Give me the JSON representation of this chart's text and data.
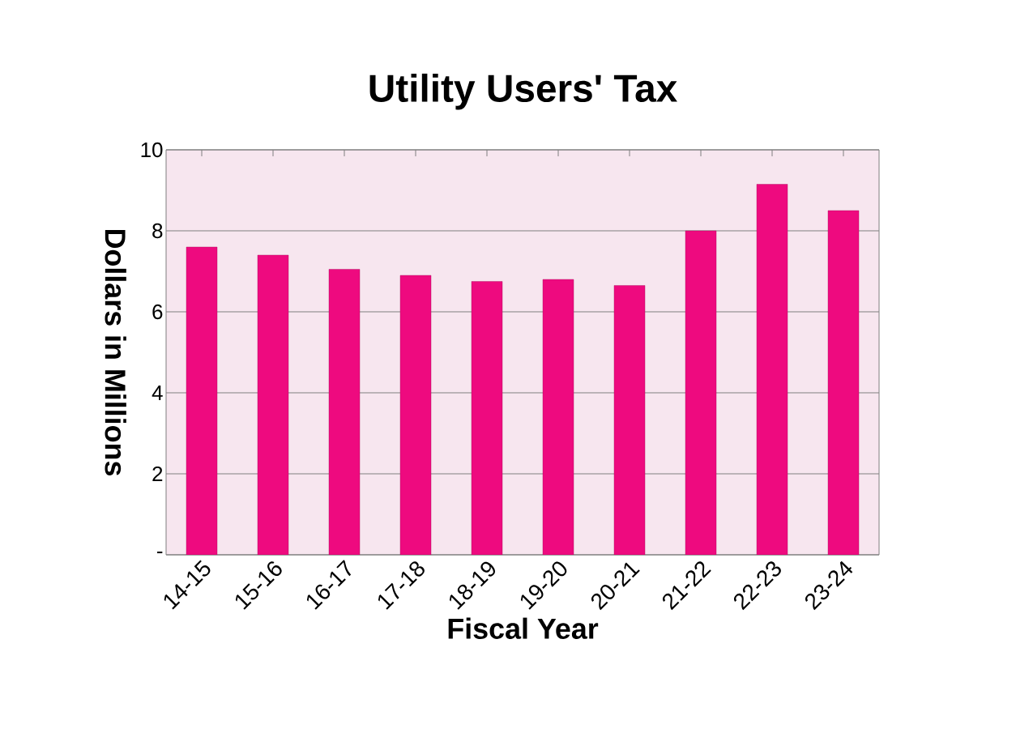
{
  "chart_data": {
    "type": "bar",
    "title": "Utility Users' Tax",
    "xlabel": "Fiscal Year",
    "ylabel": "Dollars in Millions",
    "categories": [
      "14-15",
      "15-16",
      "16-17",
      "17-18",
      "18-19",
      "19-20",
      "20-21",
      "21-22",
      "22-23",
      "23-24"
    ],
    "values": [
      7.6,
      7.4,
      7.05,
      6.9,
      6.75,
      6.8,
      6.65,
      8.0,
      9.15,
      8.5
    ],
    "color": "#ee0a7f",
    "ylim": [
      0,
      10
    ],
    "yticks": [
      {
        "value": 0,
        "label": "-"
      },
      2,
      4,
      6,
      8,
      10
    ],
    "grid": "y"
  }
}
